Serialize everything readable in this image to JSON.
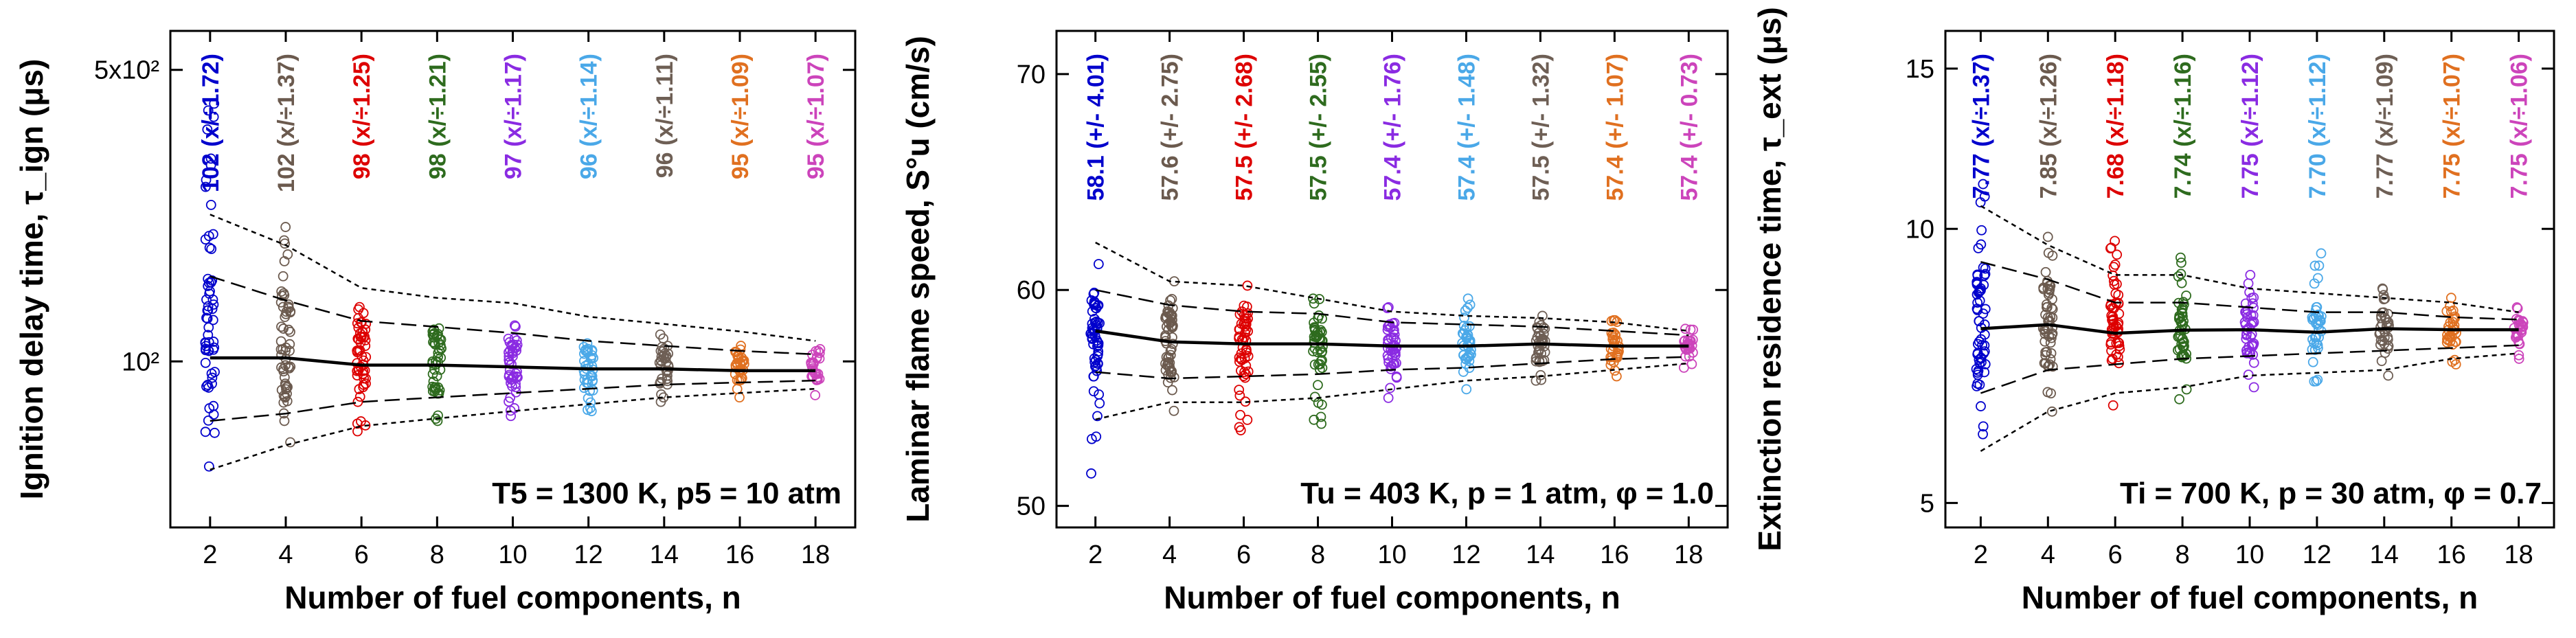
{
  "chart_data": [
    {
      "type": "scatter",
      "scale": "log",
      "xlabel": "Number of fuel components, n",
      "ylabel": "Ignition delay time, τ_ign (μs)",
      "ylim": [
        40,
        620
      ],
      "y_ticks": [
        {
          "value": 100,
          "label": "10²"
        },
        {
          "value": 500,
          "label": "5x10²"
        }
      ],
      "condition": "T5 = 1300 K, p5 = 10 atm",
      "x": [
        2,
        4,
        6,
        8,
        10,
        12,
        14,
        16,
        18
      ],
      "median": [
        102,
        102,
        98,
        98,
        97,
        96,
        96,
        95,
        95
      ],
      "labels": [
        "102 (x/÷1.72)",
        "102 (x/÷1.37)",
        "98 (x/÷1.25)",
        "98 (x/÷1.21)",
        "97 (x/÷1.17)",
        "96 (x/÷1.14)",
        "96 (x/÷1.11)",
        "95 (x/÷1.09)",
        "95 (x/÷1.07)"
      ],
      "spread": [
        1.72,
        1.37,
        1.25,
        1.21,
        1.17,
        1.14,
        1.11,
        1.09,
        1.07
      ],
      "band_inner_upper": [
        160,
        140,
        125,
        121,
        117,
        112,
        109,
        106,
        104
      ],
      "band_inner_lower": [
        72,
        75,
        80,
        82,
        84,
        86,
        88,
        89,
        90
      ],
      "band_outer_upper": [
        225,
        190,
        150,
        142,
        138,
        128,
        123,
        118,
        112
      ],
      "band_outer_lower": [
        55,
        63,
        70,
        73,
        76,
        79,
        82,
        84,
        86
      ],
      "max_points": [
        415,
        210,
        135,
        120,
        122,
        107,
        116,
        109,
        107
      ],
      "min_points": [
        56,
        64,
        68,
        72,
        74,
        76,
        80,
        82,
        83
      ]
    },
    {
      "type": "scatter",
      "scale": "linear",
      "xlabel": "Number of fuel components, n",
      "ylabel": "Laminar flame speed, S°u (cm/s)",
      "ylim": [
        49,
        72
      ],
      "y_ticks": [
        {
          "value": 50,
          "label": "50"
        },
        {
          "value": 60,
          "label": "60"
        },
        {
          "value": 70,
          "label": "70"
        }
      ],
      "condition": "Tu = 403 K, p = 1 atm, φ = 1.0",
      "x": [
        2,
        4,
        6,
        8,
        10,
        12,
        14,
        16,
        18
      ],
      "median": [
        58.1,
        57.6,
        57.5,
        57.5,
        57.4,
        57.4,
        57.5,
        57.4,
        57.4
      ],
      "labels": [
        "58.1 (+/- 4.01)",
        "57.6 (+/- 2.75)",
        "57.5 (+/- 2.68)",
        "57.5 (+/- 2.55)",
        "57.4 (+/- 1.76)",
        "57.4 (+/- 1.48)",
        "57.5 (+/- 1.32)",
        "57.4 (+/- 1.07)",
        "57.4 (+/- 0.73)"
      ],
      "spread": [
        4.01,
        2.75,
        2.68,
        2.55,
        1.76,
        1.48,
        1.32,
        1.07,
        0.73
      ],
      "band_inner_upper": [
        60.0,
        59.3,
        59.0,
        58.9,
        58.5,
        58.4,
        58.3,
        58.1,
        57.9
      ],
      "band_inner_lower": [
        56.2,
        55.9,
        56.0,
        56.1,
        56.3,
        56.4,
        56.6,
        56.8,
        56.9
      ],
      "band_outer_upper": [
        62.2,
        60.4,
        60.2,
        59.6,
        59.0,
        58.8,
        58.7,
        58.5,
        58.1
      ],
      "band_outer_lower": [
        54.0,
        54.8,
        54.8,
        55.0,
        55.4,
        55.8,
        56.0,
        56.3,
        56.6
      ],
      "max_points": [
        61.2,
        60.4,
        60.2,
        59.6,
        59.2,
        59.6,
        58.8,
        58.6,
        58.2
      ],
      "min_points": [
        51.5,
        54.4,
        53.5,
        53.8,
        55.0,
        55.4,
        55.8,
        56.0,
        56.4
      ]
    },
    {
      "type": "scatter",
      "scale": "log",
      "xlabel": "Number of fuel components, n",
      "ylabel": "Extinction residence time, τ_ext (μs)",
      "ylim": [
        4.7,
        16.5
      ],
      "y_ticks": [
        {
          "value": 5,
          "label": "5"
        },
        {
          "value": 10,
          "label": "10"
        },
        {
          "value": 15,
          "label": "15"
        }
      ],
      "condition": "Ti = 700 K, p = 30 atm, φ = 0.7",
      "x": [
        2,
        4,
        6,
        8,
        10,
        12,
        14,
        16,
        18
      ],
      "median": [
        7.77,
        7.85,
        7.68,
        7.74,
        7.75,
        7.7,
        7.77,
        7.75,
        7.75
      ],
      "labels": [
        "7.77 (x/÷1.37)",
        "7.85 (x/÷1.26)",
        "7.68 (x/÷1.18)",
        "7.74 (x/÷1.16)",
        "7.75 (x/÷1.12)",
        "7.70 (x/÷1.12)",
        "7.77 (x/÷1.09)",
        "7.75 (x/÷1.07)",
        "7.75 (x/÷1.06)"
      ],
      "spread": [
        1.37,
        1.26,
        1.18,
        1.16,
        1.12,
        1.12,
        1.09,
        1.07,
        1.06
      ],
      "band_inner_upper": [
        9.2,
        8.8,
        8.3,
        8.3,
        8.2,
        8.1,
        8.1,
        8.0,
        7.95
      ],
      "band_inner_lower": [
        6.6,
        7.0,
        7.1,
        7.2,
        7.25,
        7.3,
        7.35,
        7.4,
        7.45
      ],
      "band_outer_upper": [
        10.6,
        9.6,
        8.9,
        8.9,
        8.6,
        8.5,
        8.4,
        8.3,
        8.1
      ],
      "band_outer_lower": [
        5.7,
        6.3,
        6.6,
        6.7,
        6.9,
        6.95,
        7.0,
        7.2,
        7.3
      ],
      "max_points": [
        11.2,
        9.8,
        9.7,
        9.3,
        8.9,
        9.4,
        8.6,
        8.4,
        8.2
      ],
      "min_points": [
        5.95,
        6.3,
        6.4,
        6.5,
        6.7,
        6.8,
        6.9,
        7.1,
        7.2
      ]
    }
  ],
  "series_colors": [
    "#0000cc",
    "#6b5a4e",
    "#dd0000",
    "#2e6b1e",
    "#8a2be2",
    "#4aa8e8",
    "#6e5f55",
    "#e07020",
    "#cc44bb"
  ]
}
